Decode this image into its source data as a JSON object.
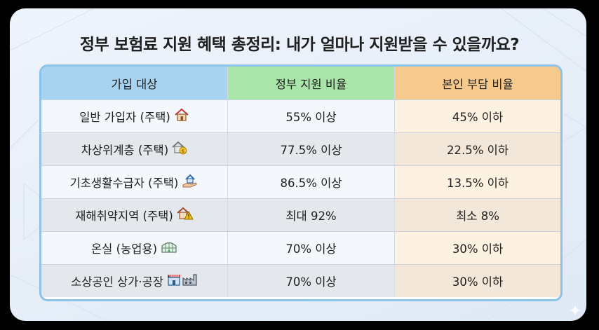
{
  "title": "정부 보험료 지원 혜택 총정리: 내가 얼마나 지원받을 수 있을까요?",
  "table": {
    "headers": [
      "가입 대상",
      "정부 지원 비율",
      "본인 부담 비율"
    ],
    "rows": [
      {
        "target": "일반 가입자 (주택)",
        "icon": "house-icon",
        "gov": "55% 이상",
        "self": "45% 이하"
      },
      {
        "target": "차상위계층 (주택)",
        "icon": "house-coin-icon",
        "gov": "77.5% 이상",
        "self": "22.5% 이하"
      },
      {
        "target": "기초생활수급자 (주택)",
        "icon": "house-hand-icon",
        "gov": "86.5% 이상",
        "self": "13.5% 이하"
      },
      {
        "target": "재해취약지역 (주택)",
        "icon": "house-warning-icon",
        "gov": "최대 92%",
        "self": "최소 8%"
      },
      {
        "target": "온실 (농업용)",
        "icon": "greenhouse-icon",
        "gov": "70% 이상",
        "self": "30% 이하"
      },
      {
        "target": "소상공인 상가·공장",
        "icon": "store-factory-icon",
        "gov": "70% 이상",
        "self": "30% 이하"
      }
    ]
  },
  "colors": {
    "header_target": "#a8d3f0",
    "header_gov": "#a9e4a9",
    "header_self": "#f6c98d",
    "border": "#8cc3e8"
  }
}
